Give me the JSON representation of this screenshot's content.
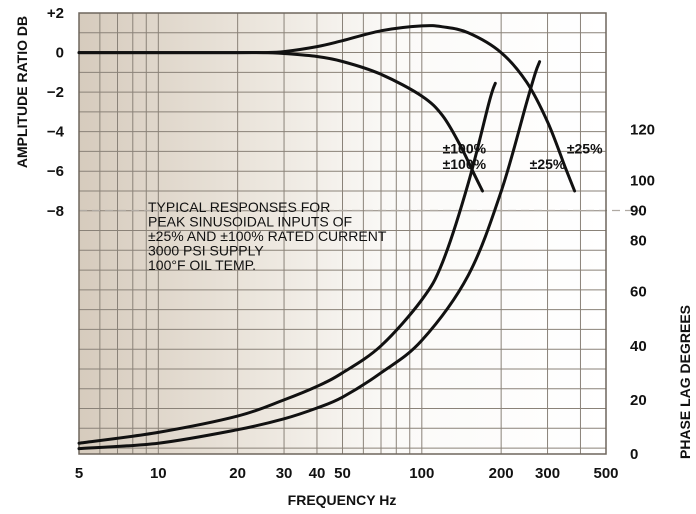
{
  "chart_data": {
    "type": "line",
    "xlabel": "FREQUENCY Hz",
    "ylabel_left": "AMPLITUDE RATIO DB",
    "ylabel_right": "PHASE LAG DEGREES",
    "x_scale": "log",
    "xlim": [
      5,
      500
    ],
    "x_ticks": [
      5,
      10,
      20,
      30,
      40,
      50,
      100,
      200,
      300,
      500
    ],
    "x_tick_labels": [
      "5",
      "10",
      "20",
      "30",
      "40",
      "50",
      "100",
      "200",
      "300",
      "500"
    ],
    "ylim_left": [
      -20.3,
      2
    ],
    "y_left_ticks": [
      2,
      0,
      -2,
      -4,
      -6,
      -8
    ],
    "y_left_tick_labels": [
      "+2",
      "0",
      "−2",
      "−4",
      "−6",
      "−8"
    ],
    "ylim_right": [
      0,
      163
    ],
    "y_right_ticks": [
      0,
      20,
      40,
      60,
      80,
      90,
      100,
      120
    ],
    "y_right_tick_labels": [
      "0",
      "20",
      "40",
      "60",
      "80",
      "90",
      "100",
      "120"
    ],
    "reference_line": {
      "axis": "right",
      "value": 90,
      "style": "dashed"
    },
    "grid": true,
    "annotation_lines": [
      "TYPICAL RESPONSES FOR",
      "PEAK SINUSOIDAL INPUTS OF",
      "±25% AND ±100% RATED CURRENT",
      "3000 PSI SUPPLY",
      "100°F OIL TEMP."
    ],
    "series": [
      {
        "name": "±25%",
        "axis": "left",
        "x": [
          5,
          10,
          20,
          25,
          30,
          40,
          50,
          70,
          100,
          120,
          150,
          200,
          250,
          300,
          350,
          380
        ],
        "y": [
          0,
          0,
          0,
          0,
          0.05,
          0.3,
          0.6,
          1.1,
          1.35,
          1.3,
          1.0,
          0,
          -1.5,
          -3.5,
          -5.8,
          -7.0
        ]
      },
      {
        "name": "±100%",
        "axis": "left",
        "x": [
          5,
          10,
          20,
          25,
          30,
          40,
          50,
          70,
          100,
          120,
          140,
          160,
          170
        ],
        "y": [
          0,
          0,
          0,
          0,
          -0.05,
          -0.2,
          -0.45,
          -1.1,
          -2.2,
          -3.2,
          -4.7,
          -6.3,
          -7.0
        ]
      },
      {
        "name": "±100%",
        "axis": "right",
        "x": [
          5,
          10,
          20,
          30,
          40,
          50,
          70,
          100,
          120,
          150,
          180,
          190
        ],
        "y": [
          4,
          8,
          14,
          20,
          25,
          30,
          40,
          57,
          71,
          100,
          130,
          137
        ]
      },
      {
        "name": "±25%",
        "axis": "right",
        "x": [
          5,
          10,
          20,
          30,
          40,
          50,
          70,
          100,
          150,
          200,
          250,
          270,
          280
        ],
        "y": [
          2,
          4,
          9,
          13,
          17,
          21,
          30,
          42,
          66,
          97,
          130,
          141,
          145
        ]
      }
    ],
    "curve_labels": [
      {
        "text": "±100%",
        "axis": "left",
        "x": 145,
        "y": -5.9
      },
      {
        "text": "±25%",
        "axis": "left",
        "x": 300,
        "y": -5.9
      },
      {
        "text": "±100%",
        "axis": "right",
        "x": 145,
        "y": 111
      },
      {
        "text": "±25%",
        "axis": "right",
        "x": 415,
        "y": 111
      }
    ]
  }
}
